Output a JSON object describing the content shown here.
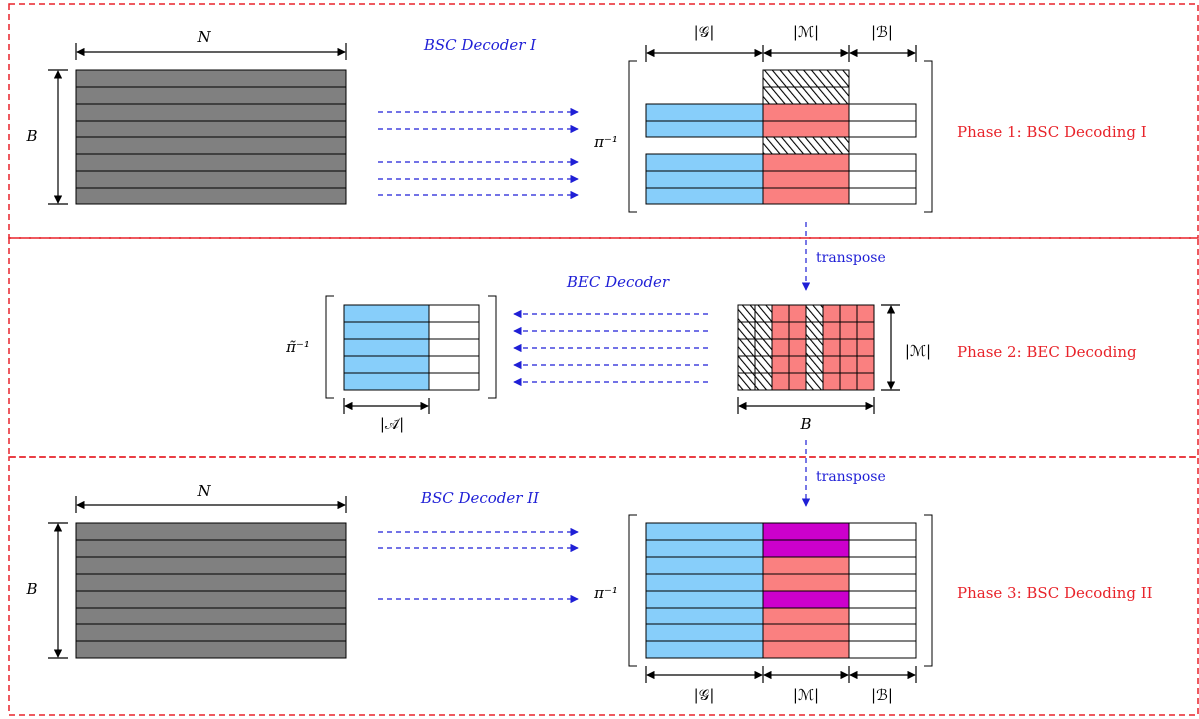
{
  "phases": [
    {
      "label": "Phase 1: BSC Decoding I",
      "decoder": "BSC Decoder I",
      "input_width_label": "N",
      "input_height_label": "B",
      "perm_label": "π⁻¹",
      "col_labels": [
        "|𝒢|",
        "|ℳ|",
        "|ℬ|"
      ]
    },
    {
      "label": "Phase 2: BEC Decoding",
      "decoder": "BEC Decoder",
      "perm_label": "π̃⁻¹",
      "width_label": "|𝒜̃|",
      "height_label": "|ℳ|",
      "bottom_label": "B"
    },
    {
      "label": "Phase 3: BSC Decoding II",
      "decoder": "BSC Decoder II",
      "input_width_label": "N",
      "input_height_label": "B",
      "perm_label": "π⁻¹",
      "col_labels": [
        "|𝒢|",
        "|ℳ|",
        "|ℬ|"
      ]
    }
  ],
  "transitions": [
    "transpose",
    "transpose"
  ],
  "colors": {
    "good": "#87cefa",
    "middle": "#fa8080",
    "middle_resolved": "#cc00cc",
    "bad": "#ffffff",
    "input": "#808080",
    "border": "#e8242b",
    "arrow": "#1f1fd6"
  }
}
